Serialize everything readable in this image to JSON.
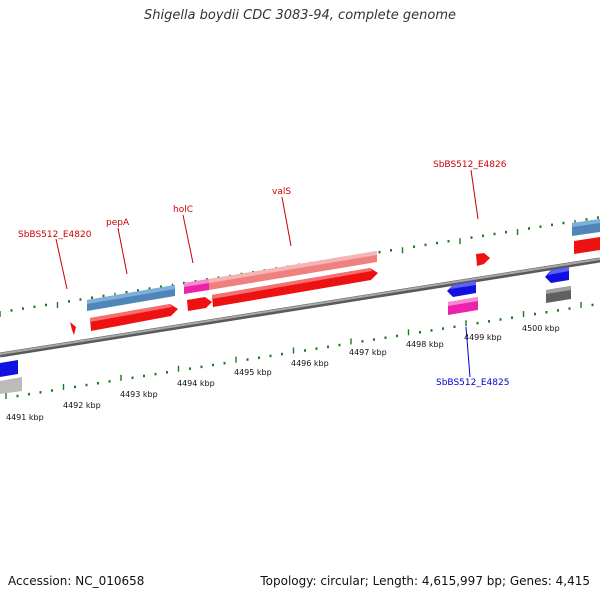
{
  "title": "Shigella boydii CDC 3083-94, complete genome",
  "footer": {
    "accession": "Accession: NC_010658",
    "stats": "Topology: circular; Length: 4,615,997 bp; Genes: 4,415"
  },
  "colors": {
    "backbone": "#808080",
    "tick": "#1a7a1a",
    "label_forward": "#cc0000",
    "label_reverse": "#0000cc",
    "red_gene": "#ee1111",
    "pink_gene": "#ee8080",
    "magenta_gene": "#ee22aa",
    "steel_gene": "#4f86b8",
    "blue_gene": "#1010e0",
    "gray_gene": "#707070",
    "lightgray_gene": "#bbbbbb"
  },
  "kbp_labels": [
    "4491 kbp",
    "4492 kbp",
    "4493 kbp",
    "4494 kbp",
    "4495 kbp",
    "4496 kbp",
    "4497 kbp",
    "4498 kbp",
    "4499 kbp",
    "4500 kbp"
  ],
  "gene_labels": [
    {
      "text": "SbBS512_E4820",
      "strand": "forward"
    },
    {
      "text": "pepA",
      "strand": "forward"
    },
    {
      "text": "holC",
      "strand": "forward"
    },
    {
      "text": "valS",
      "strand": "forward"
    },
    {
      "text": "SbBS512_E4826",
      "strand": "forward"
    },
    {
      "text": "SbBS512_E4825",
      "strand": "reverse"
    }
  ]
}
